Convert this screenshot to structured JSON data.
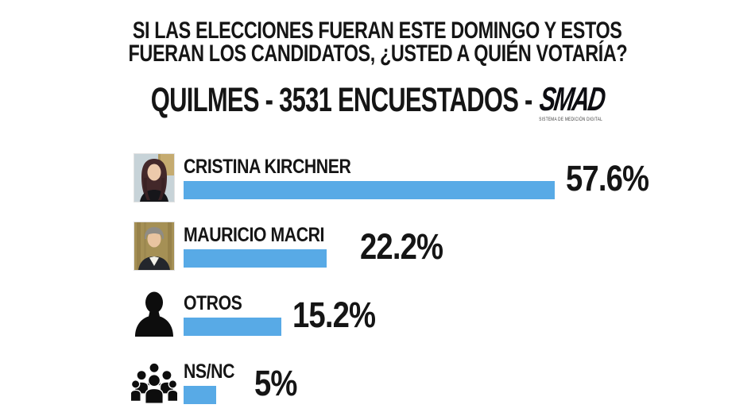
{
  "title": {
    "line1": "SI LAS ELECCIONES FUERAN ESTE DOMINGO Y ESTOS",
    "line2": "FUERAN LOS CANDIDATOS, ¿USTED A QUIÉN VOTARÍA?"
  },
  "subtitle": {
    "text": "QUILMES - 3531 ENCUESTADOS -",
    "logo": "SMAD",
    "logo_tagline": "SISTEMA DE MEDICIÓN DIGITAL"
  },
  "chart_data": {
    "type": "bar",
    "orientation": "horizontal",
    "title": "QUILMES - 3531 ENCUESTADOS",
    "location": "QUILMES",
    "sample_size": 3531,
    "unit": "%",
    "bar_color": "#58aae6",
    "xlim": [
      0,
      60
    ],
    "categories": [
      "CRISTINA KIRCHNER",
      "MAURICIO MACRI",
      "OTROS",
      "NS/NC"
    ],
    "values": [
      57.6,
      22.2,
      15.2,
      5
    ],
    "rows": [
      {
        "label": "CRISTINA KIRCHNER",
        "value": 57.6,
        "value_label": "57.6%",
        "icon": "cristina-kirchner-photo"
      },
      {
        "label": "MAURICIO MACRI",
        "value": 22.2,
        "value_label": "22.2%",
        "icon": "mauricio-macri-photo"
      },
      {
        "label": "OTROS",
        "value": 15.2,
        "value_label": "15.2%",
        "icon": "person-silhouette"
      },
      {
        "label": "NS/NC",
        "value": 5,
        "value_label": "5%",
        "icon": "people-group-silhouette"
      }
    ]
  }
}
